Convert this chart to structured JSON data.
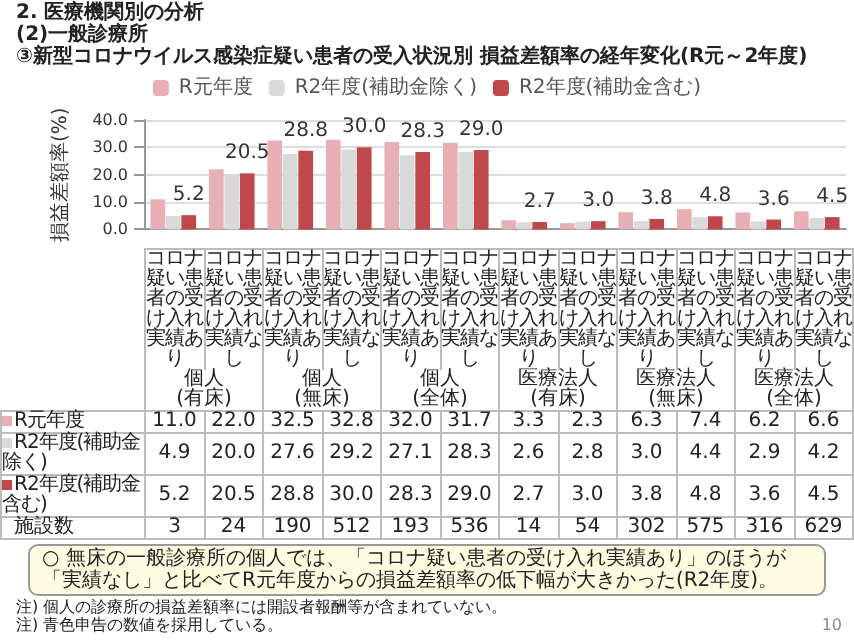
{
  "chart_data": {
    "type": "bar",
    "title": "2. 医療機関別の分析",
    "subtitle": "(2)一般診療所\n③新型コロナウイルス感染症疑い患者の受入状況別 損益差額率の経年変化(R元～2年度)",
    "ylabel": "損益差額率(%)",
    "categories": [
      "コロナ疑い患者の受け入れ実績あり",
      "コロナ疑い患者の受け入れ実績なし",
      "コロナ疑い患者の受け入れ実績あり",
      "コロナ疑い患者の受け入れ実績なし",
      "コロナ疑い患者の受け入れ実績あり",
      "コロナ疑い患者の受け入れ実績なし",
      "コロナ疑い患者の受け入れ実績あり",
      "コロナ疑い患者の受け入れ実績なし",
      "コロナ疑い患者の受け入れ実績あり",
      "コロナ疑い患者の受け入れ実績なし",
      "コロナ疑い患者の受け入れ実績あり",
      "コロナ疑い患者の受け入れ実績なし"
    ],
    "series": [
      {
        "name": "R元年度",
        "color": "#e6b0b4",
        "values": [
          11.0,
          22.0,
          32.5,
          32.8,
          32.0,
          31.7,
          3.3,
          2.3,
          6.3,
          7.4,
          6.2,
          6.6
        ],
        "value_labels": [
          "11.0",
          "22.0",
          "32.5",
          "32.8",
          "32.0",
          "31.7",
          "3.3",
          "2.3",
          "6.3",
          "7.4",
          "6.2",
          "6.6"
        ]
      },
      {
        "name": "R2年度(補助金除く)",
        "color": "#d9d9d9",
        "values": [
          4.9,
          20.0,
          27.6,
          29.2,
          27.1,
          28.3,
          2.6,
          2.8,
          3.0,
          4.4,
          2.9,
          4.2
        ],
        "value_labels": [
          "4.9",
          "20.0",
          "27.6",
          "29.2",
          "27.1",
          "28.3",
          "2.6",
          "2.8",
          "3.0",
          "4.4",
          "2.9",
          "4.2"
        ]
      },
      {
        "name": "R2年度(補助金含む)",
        "color": "#c0474a",
        "values": [
          5.2,
          20.5,
          28.8,
          30.0,
          28.3,
          29.0,
          2.7,
          3.0,
          3.8,
          4.8,
          3.6,
          4.5
        ],
        "value_labels": [
          "5.2",
          "20.5",
          "28.8",
          "30.0",
          "28.3",
          "29.0",
          "2.7",
          "3.0",
          "3.8",
          "4.8",
          "3.6",
          "4.5"
        ]
      }
    ],
    "ylim": [
      0,
      40
    ],
    "yticks": [
      {
        "value": 0,
        "label": "0.0"
      },
      {
        "value": 10,
        "label": "10.0"
      },
      {
        "value": 20,
        "label": "20.0"
      },
      {
        "value": 30,
        "label": "30.0"
      },
      {
        "value": 40,
        "label": "40.0"
      }
    ],
    "grid": "y",
    "legend": "top",
    "annotations": [
      "個人\n(有床)",
      "個人\n(無床)",
      "個人\n(全体)",
      "医療法人\n(有床)",
      "医療法人\n(無床)",
      "医療法人\n(全体)",
      "施設数",
      "3",
      "24",
      "190",
      "512",
      "193",
      "536",
      "14",
      "54",
      "302",
      "575",
      "316",
      "629",
      "○ 無床の一般診療所の個人では、「コロナ疑い患者の受け入れ実績あり」のほうが「実績なし」と比べてR元年度からの損益差額率の低下幅が大きかった(R2年度)。",
      "注) 個人の診療所の損益差額率には開設者報酬等が含まれていない。",
      "注) 青色申告の数値を採用している。",
      "10"
    ]
  }
}
